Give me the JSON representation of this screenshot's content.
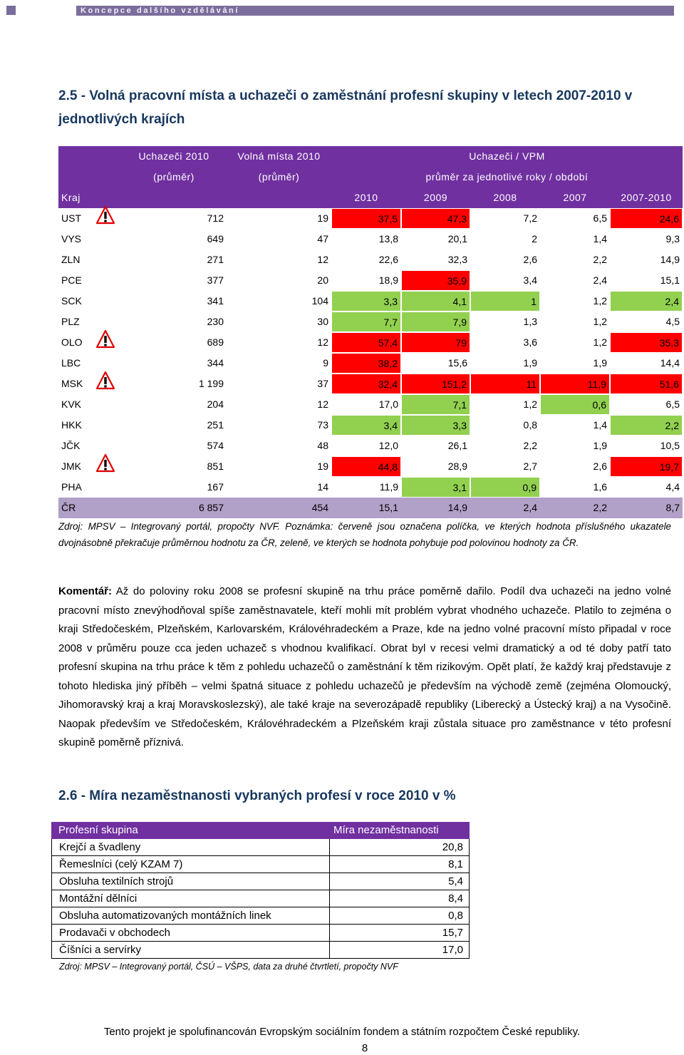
{
  "header": {
    "title": "Koncepce dalšího vzdělávání"
  },
  "section1": {
    "title": "2.5 - Volná pracovní místa a uchazeči o zaměstnání profesní skupiny v letech 2007-2010 v jednotlivých krajích",
    "table": {
      "header": {
        "col1": [
          "Uchazeči 2010",
          "(průměr)"
        ],
        "col2": [
          "Volná místa 2010",
          "(průměr)"
        ],
        "group": [
          "Uchazeči / VPM",
          "průměr za jednotlivé roky / období"
        ],
        "kraj": "Kraj",
        "years": [
          "2010",
          "2009",
          "2008",
          "2007",
          "2007-2010"
        ]
      },
      "rows": [
        {
          "cells": [
            "UST",
            "712",
            "19",
            "37,5",
            "47,3",
            "7,2",
            "6,5",
            "24,6"
          ],
          "colors": [
            "#ff0000",
            "#ff0000",
            null,
            null,
            "#ff0000"
          ],
          "warning": true
        },
        {
          "cells": [
            "VYS",
            "649",
            "47",
            "13,8",
            "20,1",
            "2",
            "1,4",
            "9,3"
          ]
        },
        {
          "cells": [
            "ZLN",
            "271",
            "12",
            "22,6",
            "32,3",
            "2,6",
            "2,2",
            "14,9"
          ]
        },
        {
          "cells": [
            "PCE",
            "377",
            "20",
            "18,9",
            "35,9",
            "3,4",
            "2,4",
            "15,1"
          ],
          "colors": [
            null,
            "#ff0000",
            null,
            null,
            null
          ]
        },
        {
          "cells": [
            "SCK",
            "341",
            "104",
            "3,3",
            "4,1",
            "1",
            "1,2",
            "2,4"
          ],
          "colors": [
            "#92d050",
            "#92d050",
            "#92d050",
            null,
            "#92d050"
          ]
        },
        {
          "cells": [
            "PLZ",
            "230",
            "30",
            "7,7",
            "7,9",
            "1,3",
            "1,2",
            "4,5"
          ],
          "colors": [
            "#92d050",
            "#92d050",
            null,
            null,
            null
          ]
        },
        {
          "cells": [
            "OLO",
            "689",
            "12",
            "57,4",
            "79",
            "3,6",
            "1,2",
            "35,3"
          ],
          "colors": [
            "#ff0000",
            "#ff0000",
            null,
            null,
            "#ff0000"
          ],
          "warning": true
        },
        {
          "cells": [
            "LBC",
            "344",
            "9",
            "38,2",
            "15,6",
            "1,9",
            "1,9",
            "14,4"
          ],
          "colors": [
            "#ff0000",
            null,
            null,
            null,
            null
          ]
        },
        {
          "cells": [
            "MSK",
            "1 199",
            "37",
            "32,4",
            "151,2",
            "11",
            "11,9",
            "51,6"
          ],
          "colors": [
            "#ff0000",
            "#ff0000",
            "#ff0000",
            "#ff0000",
            "#ff0000"
          ],
          "warning": true
        },
        {
          "cells": [
            "KVK",
            "204",
            "12",
            "17,0",
            "7,1",
            "1,2",
            "0,6",
            "6,5"
          ],
          "colors": [
            null,
            "#92d050",
            null,
            "#92d050",
            null
          ]
        },
        {
          "cells": [
            "HKK",
            "251",
            "73",
            "3,4",
            "3,3",
            "0,8",
            "1,4",
            "2,2"
          ],
          "colors": [
            "#92d050",
            "#92d050",
            null,
            null,
            "#92d050"
          ]
        },
        {
          "cells": [
            "JČK",
            "574",
            "48",
            "12,0",
            "26,1",
            "2,2",
            "1,9",
            "10,5"
          ]
        },
        {
          "cells": [
            "JMK",
            "851",
            "19",
            "44,8",
            "28,9",
            "2,7",
            "2,6",
            "19,7"
          ],
          "colors": [
            "#ff0000",
            null,
            null,
            null,
            "#ff0000"
          ],
          "warning": true
        },
        {
          "cells": [
            "PHA",
            "167",
            "14",
            "11,9",
            "3,1",
            "0,9",
            "1,6",
            "4,4"
          ],
          "colors": [
            null,
            "#92d050",
            "#92d050",
            null,
            null
          ]
        },
        {
          "cells": [
            "ČR",
            "6 857",
            "454",
            "15,1",
            "14,9",
            "2,4",
            "2,2",
            "8,7"
          ],
          "background": "#b1a0c7"
        }
      ]
    },
    "note": "Zdroj: MPSV – Integrovaný portál, propočty NVF. Poznámka: červeně jsou označena políčka, ve kterých hodnota příslušného ukazatele dvojnásobně překračuje průměrnou hodnotu za ČR, zeleně, ve kterých se hodnota pohybuje pod polovinou hodnoty za ČR.",
    "comment": {
      "label": "Komentář:",
      "text": "Až do poloviny roku 2008 se profesní skupině na trhu práce poměrně dařilo. Podíl dva uchazeči na jedno volné pracovní místo znevýhodňoval spíše zaměstnavatele, kteří mohli mít problém vybrat vhodného uchazeče. Platilo to zejména o kraji Středočeském, Plzeňském, Karlovarském, Královéhradeckém a Praze, kde na jedno volné pracovní místo připadal v roce 2008 v průměru pouze cca jeden uchazeč s vhodnou kvalifikací. Obrat byl v recesi velmi dramatický a od té doby patří tato profesní skupina na trhu práce k těm z pohledu uchazečů o zaměstnání k těm rizikovým. Opět platí, že každý kraj představuje z tohoto hlediska jiný příběh – velmi špatná situace z pohledu uchazečů je především na východě země (zejména Olomoucký, Jihomoravský kraj a kraj Moravskoslezský), ale také kraje na severozápadě republiky (Liberecký a Ústecký kraj) a na Vysočině. Naopak především ve Středočeském, Královéhradeckém a Plzeňském kraji zůstala situace pro zaměstnance v této profesní skupině poměrně příznivá."
    }
  },
  "section2": {
    "title": "2.6 - Míra nezaměstnanosti vybraných profesí v roce 2010 v %",
    "table": {
      "header": [
        "Profesní skupina",
        "Míra nezaměstnanosti"
      ],
      "rows": [
        [
          "Krejčí a švadleny",
          "20,8"
        ],
        [
          "Řemeslníci (celý KZAM 7)",
          "8,1"
        ],
        [
          "Obsluha textilních strojů",
          "5,4"
        ],
        [
          "Montážní dělníci",
          "8,4"
        ],
        [
          "Obsluha automatizovaných montážních linek",
          "0,8"
        ],
        [
          "Prodavači v obchodech",
          "15,7"
        ],
        [
          "Číšníci a servírky",
          "17,0"
        ]
      ]
    },
    "note": "Zdroj: MPSV – Integrovaný portál, ČSÚ – VŠPS, data za druhé čtvrtletí, propočty NVF"
  },
  "footer": {
    "text": "Tento projekt je spolufinancován Evropským sociálním fondem a státním rozpočtem České republiky.",
    "page": "8"
  }
}
